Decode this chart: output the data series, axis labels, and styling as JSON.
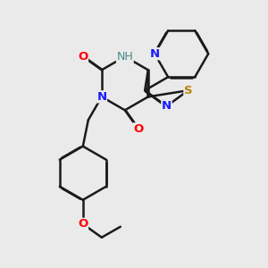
{
  "bg_color": "#eaeaea",
  "bond_color": "#1a1a1a",
  "bond_width": 1.8,
  "dbo": 0.025,
  "fig_width": 3.0,
  "fig_height": 3.0,
  "atom_colors": {
    "N": "#1a1aff",
    "O": "#ff0000",
    "S": "#b8860b",
    "C": "#1a1a1a",
    "H": "#4a8a8a"
  },
  "font_size": 9.5
}
